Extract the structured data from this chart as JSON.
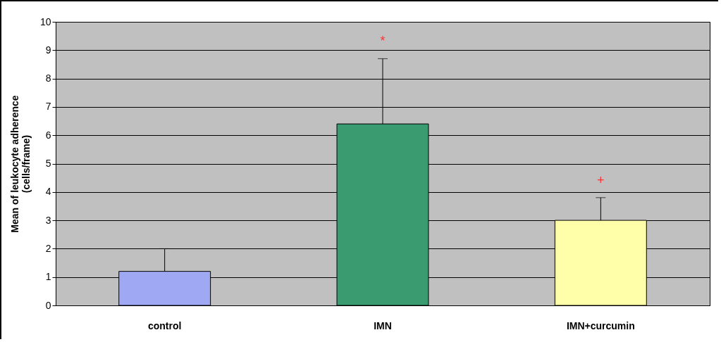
{
  "chart_data": {
    "type": "bar",
    "ylabel": "Mean of leukocyte adherence\n(cells/frame)",
    "categories": [
      "control",
      "IMN",
      "IMN+curcumin"
    ],
    "values": [
      1.2,
      6.4,
      3.0
    ],
    "colors": [
      "#9fa8f2",
      "#3a9a70",
      "#ffffaa"
    ],
    "errors": [
      [
        1.2,
        2.0
      ],
      [
        6.4,
        8.7
      ],
      [
        3.0,
        3.8
      ]
    ],
    "ylim": [
      0,
      10
    ],
    "yticks": [
      0,
      1,
      2,
      3,
      4,
      5,
      6,
      7,
      8,
      9,
      10
    ],
    "grid": "y",
    "annotations": [
      "*",
      "+"
    ]
  }
}
